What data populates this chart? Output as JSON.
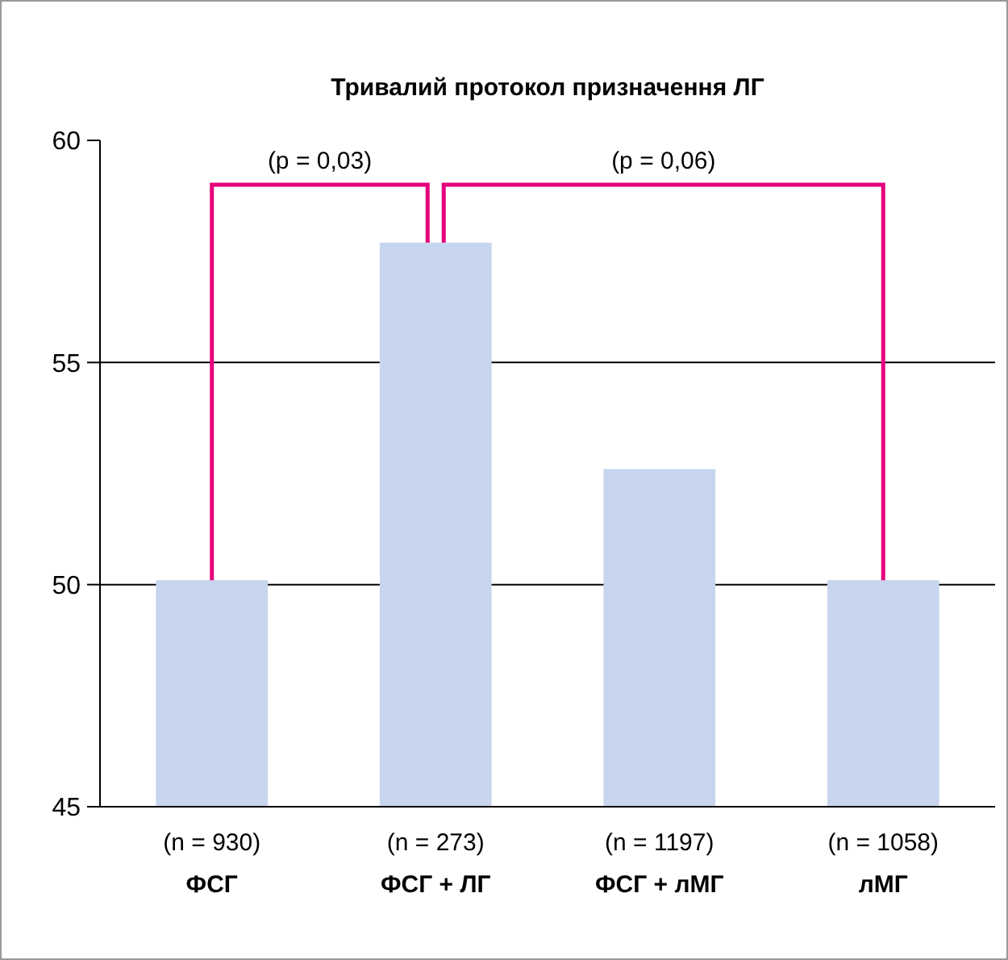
{
  "chart_data": {
    "type": "bar",
    "title": "Тривалий протокол призначення ЛГ",
    "categories": [
      "(n = 930)\nФСГ",
      "(n = 273)\nФСГ + ЛГ",
      "(n = 1197)\nФСГ + лМГ",
      "(n = 1058)\nлМГ"
    ],
    "values": [
      50.1,
      57.7,
      52.6,
      50.1
    ],
    "color": "#c8d5ee",
    "ylim": [
      45,
      60
    ],
    "yticks": [
      45,
      50,
      55,
      60
    ],
    "grid": "y",
    "annotations": [
      "(p = 0,03)",
      "(p = 0,06)"
    ]
  }
}
